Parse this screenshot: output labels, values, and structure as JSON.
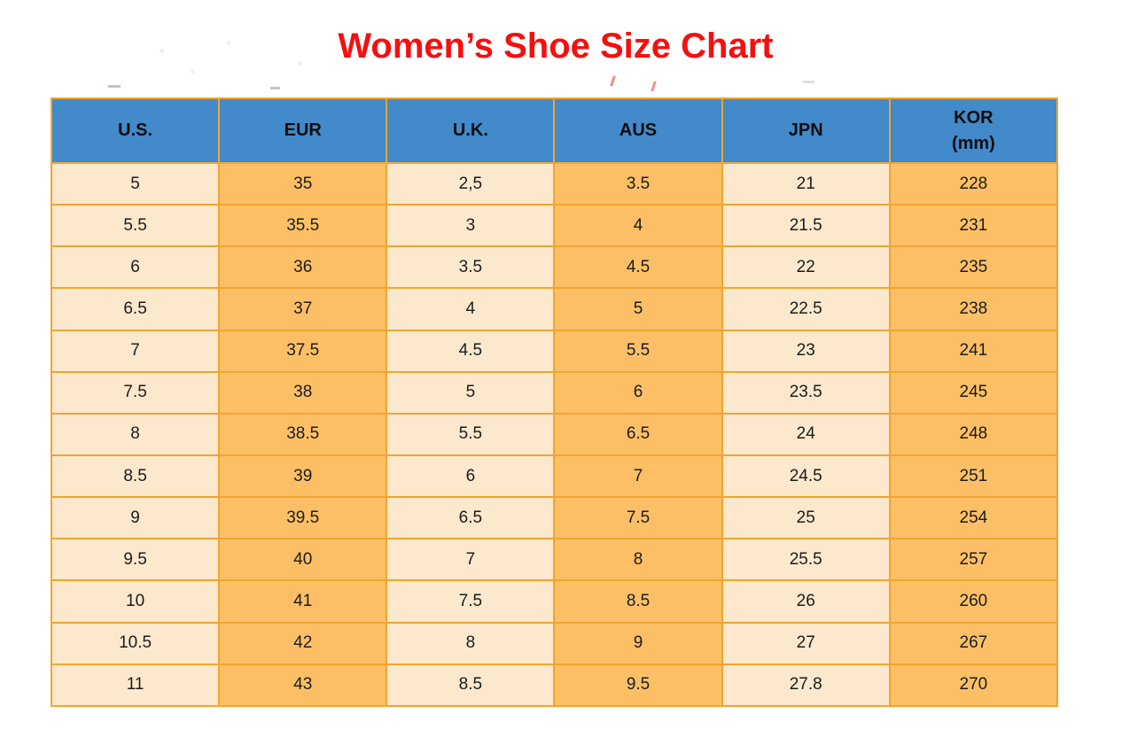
{
  "page": {
    "title": "Women’s Shoe Size Chart"
  },
  "colors": {
    "title_red": "#F50F0F",
    "header_blue": "#428AC9",
    "col_cream": "#FCE9CD",
    "col_orange": "#FDBF66",
    "border_orange": "#F2A42E",
    "text_dark": "#1C1C1C"
  },
  "chart_data": {
    "type": "table",
    "title": "Women’s Shoe Size Chart",
    "columns": [
      {
        "label": "U.S.",
        "sub": ""
      },
      {
        "label": "EUR",
        "sub": ""
      },
      {
        "label": "U.K.",
        "sub": ""
      },
      {
        "label": "AUS",
        "sub": ""
      },
      {
        "label": "JPN",
        "sub": ""
      },
      {
        "label": "KOR",
        "sub": "(mm)"
      }
    ],
    "rows": [
      [
        "5",
        "35",
        "2,5",
        "3.5",
        "21",
        "228"
      ],
      [
        "5.5",
        "35.5",
        "3",
        "4",
        "21.5",
        "231"
      ],
      [
        "6",
        "36",
        "3.5",
        "4.5",
        "22",
        "235"
      ],
      [
        "6.5",
        "37",
        "4",
        "5",
        "22.5",
        "238"
      ],
      [
        "7",
        "37.5",
        "4.5",
        "5.5",
        "23",
        "241"
      ],
      [
        "7.5",
        "38",
        "5",
        "6",
        "23.5",
        "245"
      ],
      [
        "8",
        "38.5",
        "5.5",
        "6.5",
        "24",
        "248"
      ],
      [
        "8.5",
        "39",
        "6",
        "7",
        "24.5",
        "251"
      ],
      [
        "9",
        "39.5",
        "6.5",
        "7.5",
        "25",
        "254"
      ],
      [
        "9.5",
        "40",
        "7",
        "8",
        "25.5",
        "257"
      ],
      [
        "10",
        "41",
        "7.5",
        "8.5",
        "26",
        "260"
      ],
      [
        "10.5",
        "42",
        "8",
        "9",
        "27",
        "267"
      ],
      [
        "11",
        "43",
        "8.5",
        "9.5",
        "27.8",
        "270"
      ]
    ]
  }
}
